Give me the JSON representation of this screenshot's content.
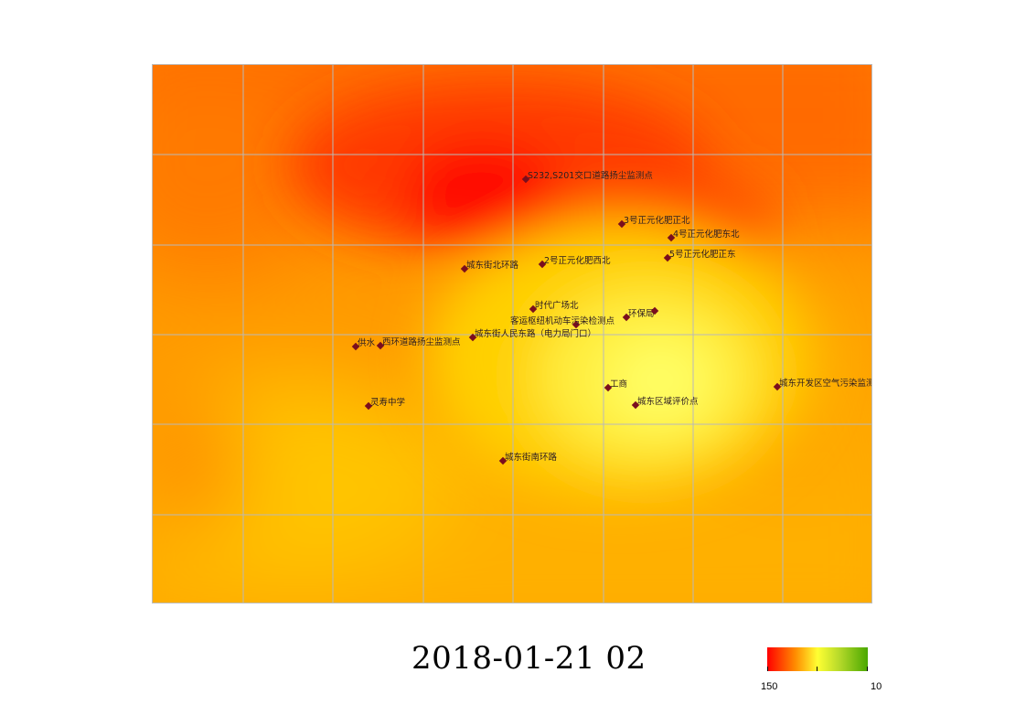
{
  "timestamp": "2018-01-21 02",
  "legend": {
    "max_label": "150",
    "min_label": "10",
    "colors": [
      "#ff0000",
      "#ff8c00",
      "#ffff33",
      "#b5d92a",
      "#4aa800"
    ]
  },
  "map": {
    "grid": true,
    "grid_color": "#b9b9b9",
    "stations": [
      {
        "label": "S232,S201交口道路扬尘监测点"
      },
      {
        "label": "3号正元化肥正北"
      },
      {
        "label": "4号正元化肥东北"
      },
      {
        "label": "5号正元化肥正东"
      },
      {
        "label": "城东街北环路"
      },
      {
        "label": "2号正元化肥西北"
      },
      {
        "label": "时代广场北"
      },
      {
        "label": "客运枢纽机动车污染检测点"
      },
      {
        "label": "环保局"
      },
      {
        "label": ""
      },
      {
        "label": "供水"
      },
      {
        "label": "西环道路扬尘监测点"
      },
      {
        "label": "城东街人民东路（电力局门口）"
      },
      {
        "label": "工商"
      },
      {
        "label": "城东区域评价点"
      },
      {
        "label": "城东开发区空气污染监测点"
      },
      {
        "label": "灵寿中学"
      },
      {
        "label": "城东街南环路"
      }
    ]
  }
}
